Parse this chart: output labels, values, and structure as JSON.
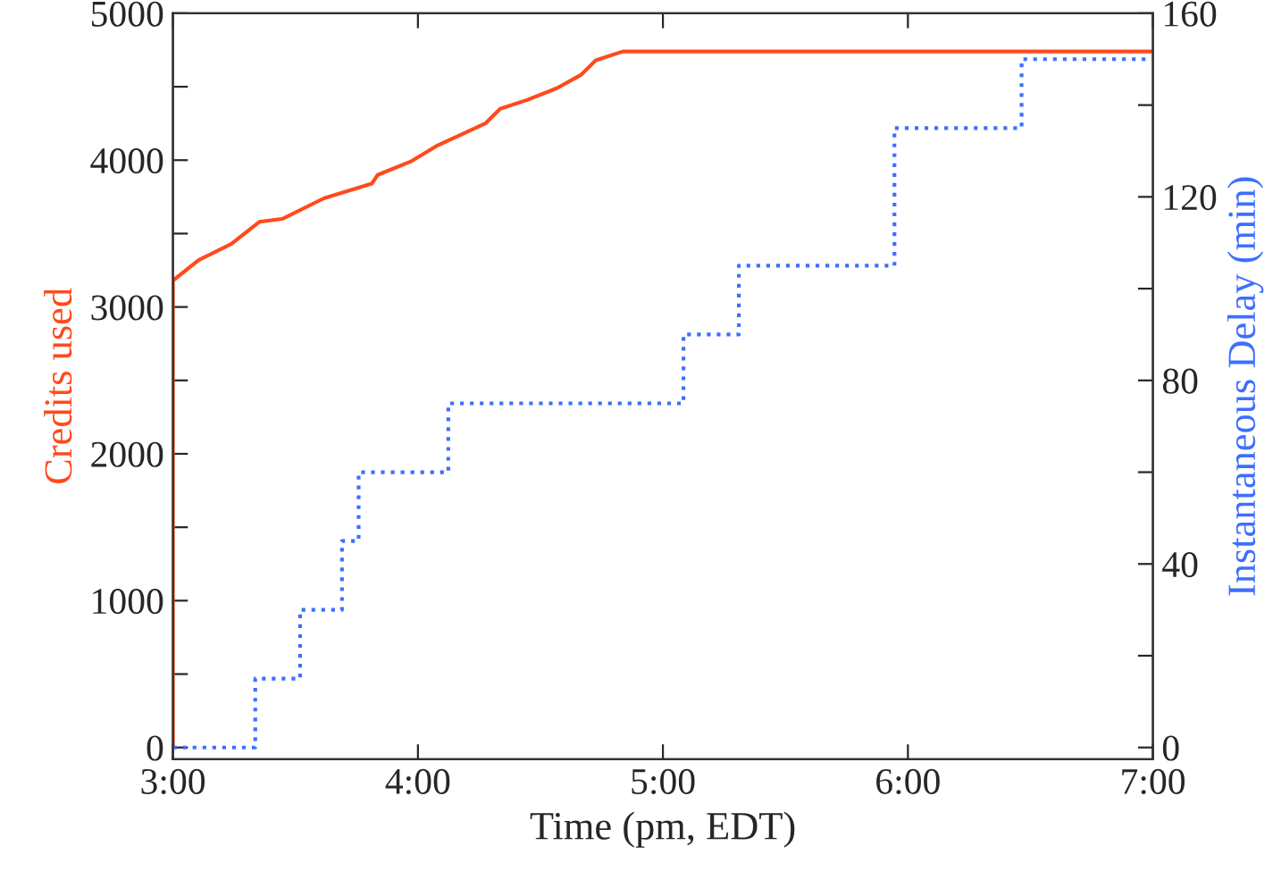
{
  "chart_data": {
    "type": "line",
    "xlabel": "Time (pm, EDT)",
    "ylabel": "Credits used",
    "y2label": "Instantaneous Delay (min)",
    "xlim": [
      3,
      7
    ],
    "xticks": [
      {
        "value": 3,
        "label": "3:00"
      },
      {
        "value": 4,
        "label": "4:00"
      },
      {
        "value": 5,
        "label": "5:00"
      },
      {
        "value": 6,
        "label": "6:00"
      },
      {
        "value": 7,
        "label": "7:00"
      }
    ],
    "ylim": [
      -80,
      5000
    ],
    "yticks": [
      0,
      {
        "value": 500,
        "label": null
      },
      1000,
      {
        "value": 1500,
        "label": null
      },
      2000,
      {
        "value": 2500,
        "label": null
      },
      3000,
      {
        "value": 3500,
        "label": null
      },
      4000,
      {
        "value": 4500,
        "label": null
      },
      5000
    ],
    "y2lim": [
      -2.56,
      160
    ],
    "y2ticks": [
      0,
      {
        "value": 20,
        "label": null
      },
      40,
      {
        "value": 60,
        "label": null
      },
      80,
      {
        "value": 100,
        "label": null
      },
      120,
      {
        "value": 140,
        "label": null
      },
      160
    ],
    "grid": false,
    "legend": false,
    "series": [
      {
        "color": "#ff4a1c",
        "line_style": "solid",
        "x": [
          3,
          3,
          3.105,
          3.239,
          3.353,
          3.446,
          3.616,
          3.812,
          3.836,
          3.97,
          4.08,
          4.275,
          4.336,
          4.446,
          4.567,
          4.665,
          4.726,
          4.836,
          7
        ],
        "values": [
          0,
          3180,
          3320,
          3430,
          3580,
          3600,
          3740,
          3840,
          3900,
          3990,
          4100,
          4250,
          4350,
          4410,
          4490,
          4580,
          4680,
          4740,
          4740
        ]
      },
      {
        "type": "step",
        "axis": "y2",
        "color": "#3d6fff",
        "line_style": "dotted",
        "x": [
          3,
          3.336,
          3.519,
          3.69,
          3.758,
          4.124,
          5.084,
          5.31,
          5.945,
          6.464,
          7
        ],
        "values": [
          0,
          15,
          30,
          45,
          60,
          75,
          90,
          105,
          135,
          150,
          150
        ]
      }
    ]
  }
}
